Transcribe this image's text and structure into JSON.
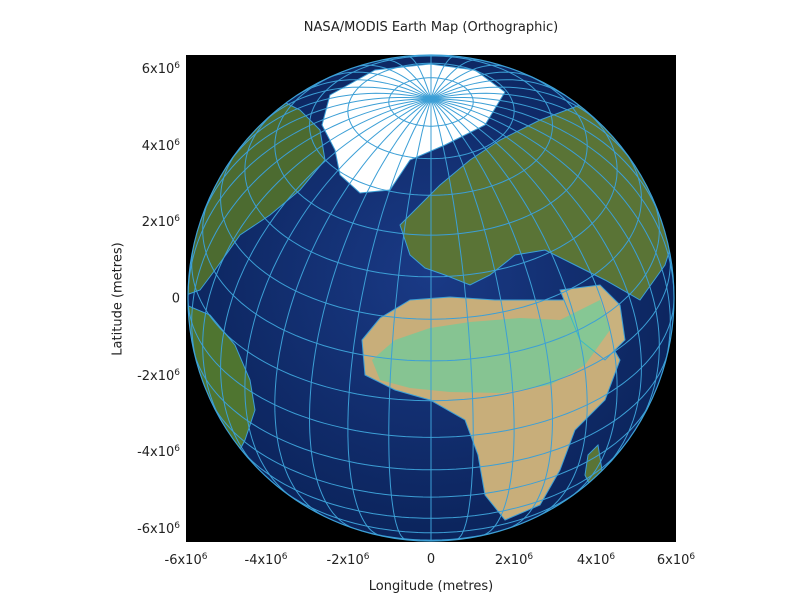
{
  "title": "NASA/MODIS Earth Map (Orthographic)",
  "xlabel": "Longitude (metres)",
  "ylabel": "Latitude (metres)",
  "xticks": [
    {
      "base": "-6x10",
      "exp": "6"
    },
    {
      "base": "-4x10",
      "exp": "6"
    },
    {
      "base": "-2x10",
      "exp": "6"
    },
    {
      "base": "0",
      "exp": ""
    },
    {
      "base": "2x10",
      "exp": "6"
    },
    {
      "base": "4x10",
      "exp": "6"
    },
    {
      "base": "6x10",
      "exp": "6"
    }
  ],
  "yticks": [
    {
      "base": "6x10",
      "exp": "6"
    },
    {
      "base": "4x10",
      "exp": "6"
    },
    {
      "base": "2x10",
      "exp": "6"
    },
    {
      "base": "0",
      "exp": ""
    },
    {
      "base": "-2x10",
      "exp": "6"
    },
    {
      "base": "-4x10",
      "exp": "6"
    },
    {
      "base": "-6x10",
      "exp": "6"
    }
  ],
  "map": {
    "projection": "orthographic",
    "center_lon": 10,
    "center_lat": 35,
    "background_color": "#000000",
    "ocean_color": "#0c2a66",
    "graticule_color": "#3c9fd6",
    "coastline_color": "#3c9fd6",
    "land_colors": [
      "#4a6b2e",
      "#c9b27e",
      "#ffffff",
      "#35e0b0"
    ]
  }
}
